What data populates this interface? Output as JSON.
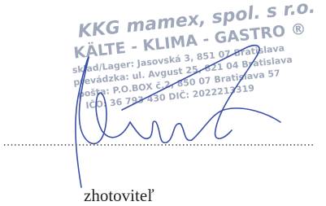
{
  "stamp": {
    "lines": [
      "KKG mamex, spol. s r.o.",
      "KÄLTE - KLIMA - GASTRO ®",
      "sklad/Lager: Jasovská 3, 851 07 Bratislava",
      "prevádzka: ul. Avgust 25, 821 04 Bratislava",
      "pošta: P.O.BOX č.2, 850 07 Bratislava 57",
      "IČO: 36 793 430   DIČ: 2022213319"
    ]
  },
  "signature_block": {
    "label": "zhotoviteľ"
  }
}
